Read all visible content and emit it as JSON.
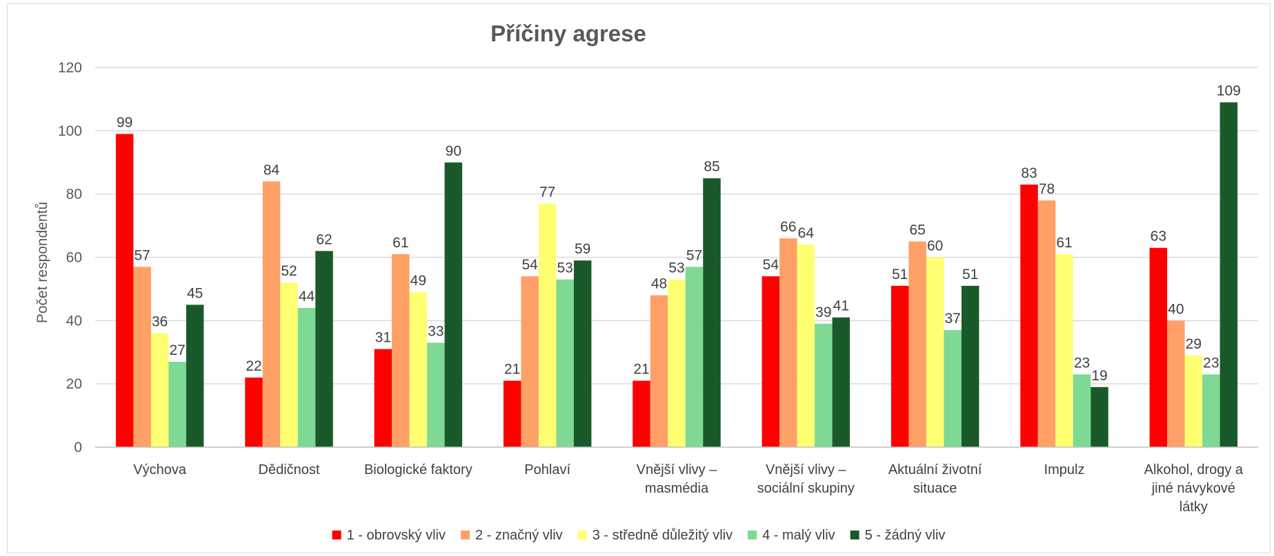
{
  "chart_data": {
    "type": "bar",
    "title": "Příčiny agrese",
    "ylabel": "Počet respondentů",
    "xlabel": "",
    "ylim": [
      0,
      120
    ],
    "yticks": [
      0,
      20,
      40,
      60,
      80,
      100,
      120
    ],
    "grid": true,
    "legend_position": "bottom",
    "categories": [
      [
        "Výchova"
      ],
      [
        "Dědičnost"
      ],
      [
        "Biologické faktory"
      ],
      [
        "Pohlaví"
      ],
      [
        "Vnější vlivy –",
        "masmédia"
      ],
      [
        "Vnější vlivy –",
        "sociální skupiny"
      ],
      [
        "Aktuální životní",
        "situace"
      ],
      [
        "Impulz"
      ],
      [
        "Alkohol, drogy a",
        "jiné návykové",
        "látky"
      ]
    ],
    "series": [
      {
        "name": "1 - obrovský vliv",
        "color": "#ff0000",
        "values": [
          99,
          22,
          31,
          21,
          21,
          54,
          51,
          83,
          63
        ]
      },
      {
        "name": "2 - značný vliv",
        "color": "#ffa066",
        "values": [
          57,
          84,
          61,
          54,
          48,
          66,
          65,
          78,
          40
        ]
      },
      {
        "name": "3 - středně důležitý vliv",
        "color": "#ffff72",
        "values": [
          36,
          52,
          49,
          77,
          53,
          64,
          60,
          61,
          29
        ]
      },
      {
        "name": "4 - malý vliv",
        "color": "#7dd993",
        "values": [
          27,
          44,
          33,
          53,
          57,
          39,
          37,
          23,
          23
        ]
      },
      {
        "name": "5 - žádný vliv",
        "color": "#1a5a2a",
        "values": [
          45,
          62,
          90,
          59,
          85,
          41,
          51,
          19,
          109
        ]
      }
    ]
  }
}
